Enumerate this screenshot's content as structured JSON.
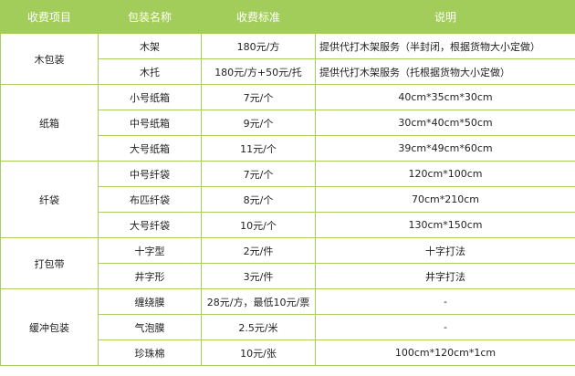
{
  "colors": {
    "header_bg": "#a3cd5b",
    "border": "#a8cf62"
  },
  "headers": [
    "收费项目",
    "包装名称",
    "收费标准",
    "说明"
  ],
  "groups": [
    {
      "category": "木包装",
      "rows": [
        {
          "name": "木架",
          "price": "180元/方",
          "note": "提供代打木架服务（半封闭，根据货物大小定做）",
          "left": true
        },
        {
          "name": "木托",
          "price": "180元/方+50元/托",
          "note": "提供代打木架服务（托根据货物大小定做）",
          "left": true
        }
      ]
    },
    {
      "category": "纸箱",
      "rows": [
        {
          "name": "小号纸箱",
          "price": "7元/个",
          "note": "40cm*35cm*30cm"
        },
        {
          "name": "中号纸箱",
          "price": "9元/个",
          "note": "30cm*40cm*50cm"
        },
        {
          "name": "大号纸箱",
          "price": "11元/个",
          "note": "39cm*49cm*60cm"
        }
      ]
    },
    {
      "category": "纤袋",
      "rows": [
        {
          "name": "中号纤袋",
          "price": "7元/个",
          "note": "120cm*100cm"
        },
        {
          "name": "布匹纤袋",
          "price": "8元/个",
          "note": "70cm*210cm"
        },
        {
          "name": "大号纤袋",
          "price": "10元/个",
          "note": "130cm*150cm"
        }
      ]
    },
    {
      "category": "打包带",
      "rows": [
        {
          "name": "十字型",
          "price": "2元/件",
          "note": "十字打法"
        },
        {
          "name": "井字形",
          "price": "3元/件",
          "note": "井字打法"
        }
      ]
    },
    {
      "category": "缓冲包装",
      "rows": [
        {
          "name": "缠绕膜",
          "price": "28元/方，最低10元/票",
          "note": "-"
        },
        {
          "name": "气泡膜",
          "price": "2.5元/米",
          "note": "-"
        },
        {
          "name": "珍珠棉",
          "price": "10元/张",
          "note": "100cm*120cm*1cm"
        }
      ]
    }
  ]
}
